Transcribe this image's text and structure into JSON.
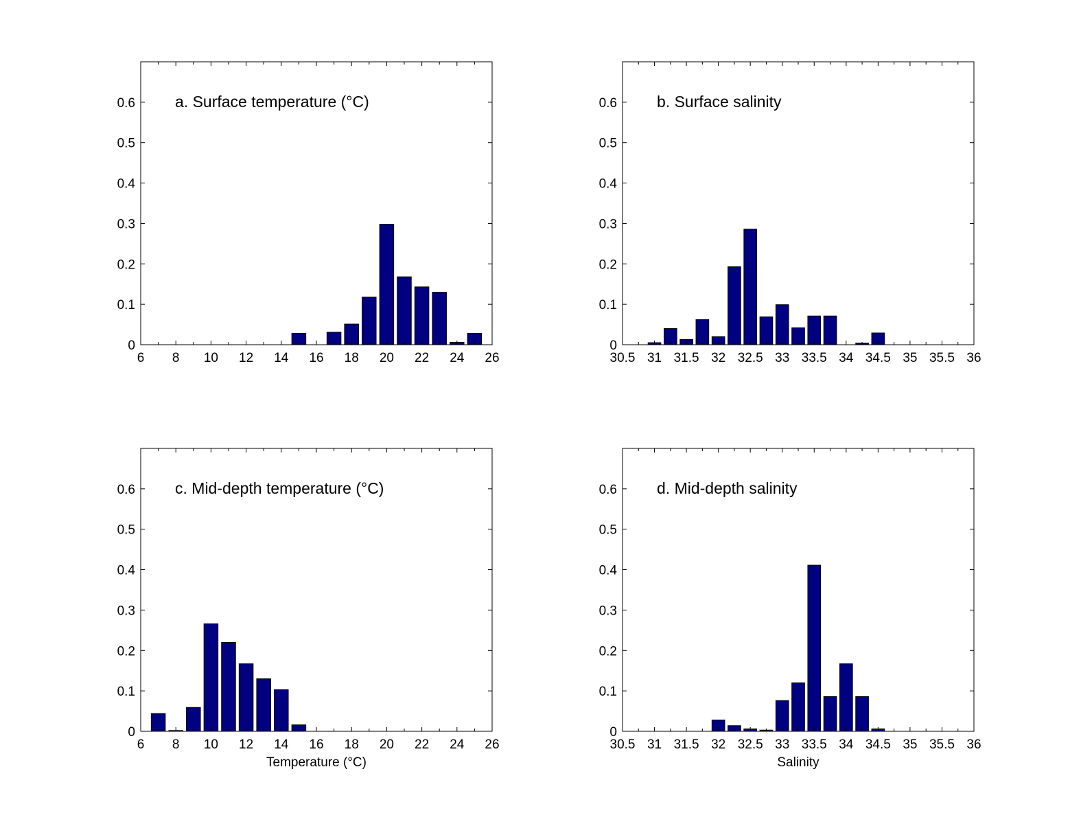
{
  "bar_color": "#000080",
  "edge_color": "#000000",
  "background_color": "#ffffff",
  "chart_data": [
    {
      "type": "bar",
      "annotation": "a. Surface temperature (°C)",
      "xlabel": "",
      "ylabel": "",
      "xlim": [
        6,
        26
      ],
      "ylim": [
        0,
        0.7
      ],
      "xticks": [
        6,
        8,
        10,
        12,
        14,
        16,
        18,
        20,
        22,
        24,
        26
      ],
      "xtick_labels": [
        "6",
        "8",
        "10",
        "12",
        "14",
        "16",
        "18",
        "20",
        "22",
        "24",
        "26"
      ],
      "yticks": [
        0,
        0.1,
        0.2,
        0.3,
        0.4,
        0.5,
        0.6
      ],
      "ytick_labels": [
        "0",
        "0.1",
        "0.2",
        "0.3",
        "0.4",
        "0.5",
        "0.6"
      ],
      "x": [
        7,
        8,
        9,
        10,
        11,
        12,
        13,
        14,
        15,
        16,
        17,
        18,
        19,
        20,
        21,
        22,
        23,
        24,
        25
      ],
      "values": [
        0,
        0,
        0,
        0,
        0,
        0,
        0,
        0,
        0.028,
        0,
        0.031,
        0.051,
        0.118,
        0.298,
        0.168,
        0.143,
        0.13,
        0.006,
        0.028
      ],
      "bar_width": 0.8
    },
    {
      "type": "bar",
      "annotation": "b. Surface salinity",
      "xlabel": "",
      "ylabel": "",
      "xlim": [
        30.5,
        36
      ],
      "ylim": [
        0,
        0.7
      ],
      "xticks": [
        30.5,
        31,
        31.5,
        32,
        32.5,
        33,
        33.5,
        34,
        34.5,
        35,
        35.5,
        36
      ],
      "xtick_labels": [
        "30.5",
        "31",
        "31.5",
        "32",
        "32.5",
        "33",
        "33.5",
        "34",
        "34.5",
        "35",
        "35.5",
        "36"
      ],
      "yticks": [
        0,
        0.1,
        0.2,
        0.3,
        0.4,
        0.5,
        0.6
      ],
      "ytick_labels": [
        "0",
        "0.1",
        "0.2",
        "0.3",
        "0.4",
        "0.5",
        "0.6"
      ],
      "x": [
        30.75,
        31,
        31.25,
        31.5,
        31.75,
        32,
        32.25,
        32.5,
        32.75,
        33,
        33.25,
        33.5,
        33.75,
        34,
        34.25,
        34.5,
        34.75,
        35,
        35.25,
        35.5,
        35.75
      ],
      "values": [
        0,
        0.005,
        0.04,
        0.013,
        0.062,
        0.02,
        0.193,
        0.286,
        0.069,
        0.099,
        0.042,
        0.071,
        0.071,
        0,
        0.004,
        0.029,
        0,
        0,
        0,
        0,
        0
      ],
      "bar_width": 0.2
    },
    {
      "type": "bar",
      "annotation": "c. Mid-depth temperature (°C)",
      "xlabel": "Temperature (°C)",
      "ylabel": "",
      "xlim": [
        6,
        26
      ],
      "ylim": [
        0,
        0.7
      ],
      "xticks": [
        6,
        8,
        10,
        12,
        14,
        16,
        18,
        20,
        22,
        24,
        26
      ],
      "xtick_labels": [
        "6",
        "8",
        "10",
        "12",
        "14",
        "16",
        "18",
        "20",
        "22",
        "24",
        "26"
      ],
      "yticks": [
        0,
        0.1,
        0.2,
        0.3,
        0.4,
        0.5,
        0.6
      ],
      "ytick_labels": [
        "0",
        "0.1",
        "0.2",
        "0.3",
        "0.4",
        "0.5",
        "0.6"
      ],
      "x": [
        7,
        8,
        9,
        10,
        11,
        12,
        13,
        14,
        15,
        16,
        17,
        18,
        19,
        20,
        21,
        22,
        23,
        24,
        25
      ],
      "values": [
        0.044,
        0.002,
        0.059,
        0.266,
        0.22,
        0.167,
        0.13,
        0.103,
        0.016,
        0,
        0,
        0,
        0,
        0,
        0,
        0,
        0,
        0,
        0
      ],
      "bar_width": 0.8
    },
    {
      "type": "bar",
      "annotation": "d. Mid-depth salinity",
      "xlabel": "Salinity",
      "ylabel": "",
      "xlim": [
        30.5,
        36
      ],
      "ylim": [
        0,
        0.7
      ],
      "xticks": [
        30.5,
        31,
        31.5,
        32,
        32.5,
        33,
        33.5,
        34,
        34.5,
        35,
        35.5,
        36
      ],
      "xtick_labels": [
        "30.5",
        "31",
        "31.5",
        "32",
        "32.5",
        "33",
        "33.5",
        "34",
        "34.5",
        "35",
        "35.5",
        "36"
      ],
      "yticks": [
        0,
        0.1,
        0.2,
        0.3,
        0.4,
        0.5,
        0.6
      ],
      "ytick_labels": [
        "0",
        "0.1",
        "0.2",
        "0.3",
        "0.4",
        "0.5",
        "0.6"
      ],
      "x": [
        30.75,
        31,
        31.25,
        31.5,
        31.75,
        32,
        32.25,
        32.5,
        32.75,
        33,
        33.25,
        33.5,
        33.75,
        34,
        34.25,
        34.5,
        34.75,
        35,
        35.25,
        35.5,
        35.75
      ],
      "values": [
        0,
        0,
        0,
        0,
        0,
        0.028,
        0.014,
        0.006,
        0.003,
        0.076,
        0.12,
        0.411,
        0.086,
        0.167,
        0.086,
        0.006,
        0,
        0,
        0,
        0,
        0
      ],
      "bar_width": 0.2
    }
  ]
}
